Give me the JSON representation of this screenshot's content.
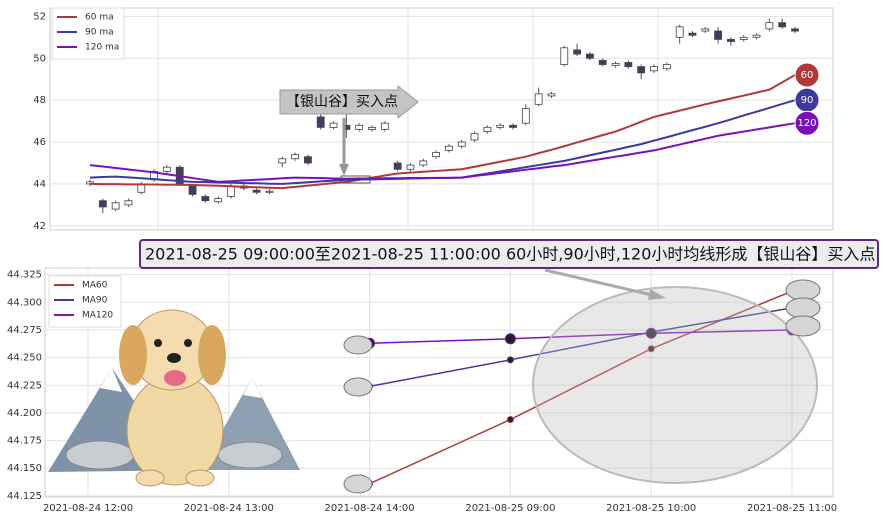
{
  "chart_data": [
    {
      "type": "candlestick",
      "categories": [
        null,
        null,
        null,
        null,
        null,
        null,
        null,
        null,
        null,
        null,
        null,
        null,
        null,
        null,
        null,
        null,
        null,
        null,
        null,
        null,
        null,
        null,
        null,
        null,
        null,
        null,
        null,
        null,
        null,
        null,
        null,
        null,
        null,
        null,
        null,
        null,
        null,
        null,
        null,
        null,
        null,
        null,
        null,
        null,
        null,
        null,
        null,
        null,
        null,
        null,
        null,
        null,
        null,
        null,
        null,
        null
      ],
      "open": [
        44.0,
        43.2,
        42.8,
        43.0,
        43.6,
        44.2,
        44.6,
        44.8,
        43.9,
        43.4,
        43.15,
        43.4,
        43.9,
        43.7,
        43.6,
        45.0,
        45.2,
        45.3,
        47.2,
        46.7,
        46.8,
        46.6,
        46.6,
        46.6,
        45.0,
        44.7,
        44.9,
        45.3,
        45.6,
        45.8,
        46.1,
        46.5,
        46.7,
        46.8,
        46.9,
        47.8,
        48.2,
        49.7,
        50.4,
        50.2,
        49.9,
        49.65,
        49.8,
        49.6,
        49.4,
        49.5,
        51.0,
        51.2,
        51.3,
        51.3,
        50.9,
        50.9,
        51.0,
        51.4,
        51.7,
        51.4
      ],
      "high": [
        44.2,
        43.3,
        43.2,
        43.3,
        44.1,
        44.7,
        44.9,
        44.9,
        44.0,
        43.5,
        43.4,
        44.0,
        44.1,
        43.8,
        43.75,
        45.3,
        45.5,
        45.4,
        47.4,
        47.0,
        47.4,
        46.9,
        46.8,
        47.0,
        45.1,
        45.0,
        45.2,
        45.6,
        45.9,
        46.1,
        46.5,
        46.8,
        46.9,
        46.9,
        47.8,
        48.6,
        48.4,
        50.6,
        50.7,
        50.3,
        50.0,
        49.85,
        49.9,
        49.7,
        49.7,
        49.8,
        51.6,
        51.3,
        51.5,
        51.5,
        51.0,
        51.1,
        51.2,
        51.9,
        51.9,
        51.5
      ],
      "low": [
        43.9,
        42.6,
        42.7,
        42.9,
        43.5,
        44.1,
        44.5,
        43.9,
        43.4,
        43.1,
        43.05,
        43.3,
        43.7,
        43.5,
        43.5,
        44.8,
        45.1,
        44.9,
        46.6,
        46.6,
        46.2,
        46.5,
        46.5,
        46.5,
        44.6,
        44.6,
        44.8,
        45.2,
        45.5,
        45.7,
        46.0,
        46.4,
        46.6,
        46.6,
        46.8,
        47.7,
        48.1,
        49.6,
        50.1,
        49.9,
        49.6,
        49.55,
        49.5,
        49.0,
        49.3,
        49.4,
        50.7,
        51.0,
        51.2,
        50.7,
        50.6,
        50.8,
        50.9,
        51.3,
        51.4,
        51.2
      ],
      "close": [
        44.1,
        42.9,
        43.1,
        43.2,
        44.0,
        44.6,
        44.8,
        44.0,
        43.5,
        43.2,
        43.3,
        43.9,
        43.8,
        43.6,
        43.65,
        45.2,
        45.4,
        45.0,
        46.7,
        46.9,
        46.6,
        46.8,
        46.7,
        46.9,
        44.7,
        44.9,
        45.1,
        45.5,
        45.8,
        46.0,
        46.4,
        46.7,
        46.8,
        46.7,
        47.6,
        48.3,
        48.3,
        50.5,
        50.2,
        50.0,
        49.7,
        49.75,
        49.6,
        49.3,
        49.6,
        49.7,
        51.5,
        51.1,
        51.4,
        50.9,
        50.8,
        51.0,
        51.1,
        51.7,
        51.5,
        51.3
      ],
      "up_color": "#ffffff",
      "down_color": "#3b4160",
      "series": [
        {
          "name": "60 ma",
          "color": "#b03a3a",
          "end_label": "60",
          "values": [
            44.0,
            43.99,
            43.99,
            43.98,
            43.98,
            43.97,
            43.96,
            43.96,
            43.95,
            43.93,
            43.91,
            43.89,
            43.86,
            43.84,
            43.82,
            43.8,
            43.86,
            43.92,
            43.98,
            44.04,
            44.1,
            44.2,
            44.3,
            44.4,
            44.5,
            44.54,
            44.58,
            44.62,
            44.66,
            44.7,
            44.82,
            44.94,
            45.06,
            45.18,
            45.3,
            45.47,
            45.63,
            45.8,
            45.98,
            46.15,
            46.33,
            46.5,
            46.73,
            46.97,
            47.2,
            47.35,
            47.5,
            47.65,
            47.8,
            47.94,
            48.08,
            48.22,
            48.36,
            48.5,
            48.85,
            49.2
          ]
        },
        {
          "name": "90 ma",
          "color": "#3a3aa0",
          "end_label": "90",
          "values": [
            44.3,
            44.33,
            44.35,
            44.31,
            44.27,
            44.23,
            44.18,
            44.14,
            44.1,
            44.09,
            44.07,
            44.06,
            44.04,
            44.03,
            44.01,
            44.0,
            44.04,
            44.08,
            44.12,
            44.16,
            44.2,
            44.21,
            44.22,
            44.23,
            44.24,
            44.26,
            44.27,
            44.28,
            44.29,
            44.3,
            44.4,
            44.5,
            44.6,
            44.7,
            44.8,
            44.9,
            45.0,
            45.1,
            45.23,
            45.37,
            45.5,
            45.63,
            45.77,
            45.9,
            46.07,
            46.23,
            46.4,
            46.57,
            46.73,
            46.9,
            47.08,
            47.27,
            47.45,
            47.63,
            47.82,
            48.0
          ]
        },
        {
          "name": "120 ma",
          "color": "#7a10b8",
          "end_label": "120",
          "values": [
            44.9,
            44.83,
            44.76,
            44.69,
            44.62,
            44.55,
            44.46,
            44.37,
            44.28,
            44.19,
            44.1,
            44.13,
            44.17,
            44.2,
            44.23,
            44.27,
            44.3,
            44.29,
            44.28,
            44.26,
            44.25,
            44.26,
            44.26,
            44.27,
            44.27,
            44.28,
            44.28,
            44.29,
            44.29,
            44.3,
            44.38,
            44.45,
            44.53,
            44.6,
            44.68,
            44.75,
            44.83,
            44.9,
            45.0,
            45.1,
            45.2,
            45.3,
            45.4,
            45.5,
            45.6,
            45.74,
            45.88,
            46.02,
            46.16,
            46.3,
            46.4,
            46.5,
            46.6,
            46.7,
            46.8,
            46.9
          ]
        }
      ],
      "ylim": [
        41.8,
        52.4
      ],
      "yticks": [
        42,
        44,
        46,
        48,
        50,
        52
      ],
      "grid": true,
      "legend": "upper-left",
      "annotation": "【银山谷】买入点"
    },
    {
      "type": "line",
      "categories": [
        "2021-08-24 12:00",
        "2021-08-24 13:00",
        "2021-08-24 14:00",
        "2021-08-25 09:00",
        "2021-08-25 10:00",
        "2021-08-25 11:00"
      ],
      "series": [
        {
          "name": "MA60",
          "color": "#b03a3a",
          "values": [
            null,
            null,
            44.136,
            44.194,
            44.258,
            44.31
          ]
        },
        {
          "name": "MA90",
          "color": "#3a3aa0",
          "values": [
            null,
            null,
            44.224,
            44.248,
            44.273,
            44.295
          ]
        },
        {
          "name": "MA120",
          "color": "#7a10b8",
          "values": [
            null,
            null,
            44.263,
            44.267,
            44.272,
            44.275
          ]
        }
      ],
      "ylim": [
        44.124,
        44.331
      ],
      "yticks": [
        44.125,
        {
          "value": 44.15,
          "label": "44.150"
        },
        44.175,
        {
          "value": 44.2,
          "label": "44.200"
        },
        44.225,
        {
          "value": 44.25,
          "label": "44.250"
        },
        44.275,
        {
          "value": 44.3,
          "label": "44.300"
        },
        44.325
      ],
      "grid": true,
      "legend": "upper-left",
      "annotation": "2021-08-25 09:00:00至2021-08-25 11:00:00 60小时,90小时,120小时均线形成【银山谷】买入点"
    }
  ]
}
